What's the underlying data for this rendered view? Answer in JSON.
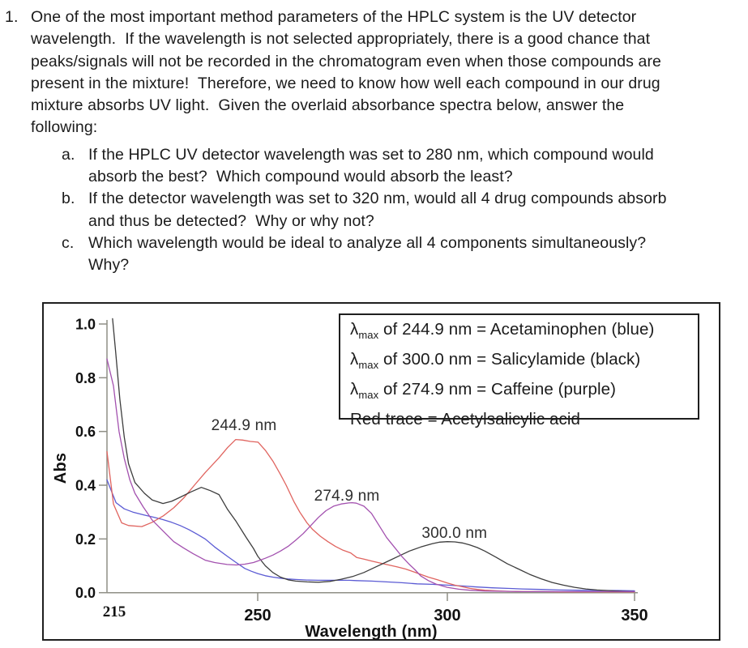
{
  "question": {
    "number": "1.",
    "lines": [
      "One of the most important method parameters of the HPLC system is the UV detector",
      "wavelength.  If the wavelength is not selected appropriately, there is a good chance that",
      "peaks/signals will not be recorded in the chromatogram even when those compounds are",
      "present in the mixture!  Therefore, we need to know how well each compound in our drug",
      "mixture absorbs UV light.  Given the overlaid absorbance spectra below, answer the",
      "following:"
    ],
    "sub_items": [
      {
        "label": "a.",
        "lines": [
          "If the HPLC UV detector wavelength was set to 280 nm, which compound would",
          "absorb the best?  Which compound would absorb the least?"
        ]
      },
      {
        "label": "b.",
        "lines": [
          "If the detector wavelength was set to 320 nm, would all 4 drug compounds absorb",
          "and thus be detected?  Why or why not?"
        ]
      },
      {
        "label": "c.",
        "lines": [
          "Which wavelength would be ideal to analyze all 4 components simultaneously?",
          "Why?"
        ]
      }
    ]
  },
  "chart_data": {
    "type": "line",
    "xlabel": "Wavelength (nm)",
    "ylabel": "Abs",
    "xlim": [
      215,
      350
    ],
    "ylim": [
      0.0,
      1.0
    ],
    "grid": false,
    "x_ticks": [
      {
        "label": "215",
        "value": 215,
        "serif": true,
        "show_tick": false,
        "dx": 9
      },
      {
        "label": "250",
        "value": 250
      },
      {
        "label": "300",
        "value": 300
      },
      {
        "label": "350",
        "value": 350
      }
    ],
    "y_ticks": [
      {
        "label": "0.0",
        "value": 0.0
      },
      {
        "label": "0.2",
        "value": 0.2
      },
      {
        "label": "0.4",
        "value": 0.4
      },
      {
        "label": "0.6",
        "value": 0.6
      },
      {
        "label": "0.8",
        "value": 0.8
      },
      {
        "label": "1.0",
        "value": 1.0
      }
    ],
    "annotations": [
      {
        "text": "244.9 nm",
        "nm": 246.8,
        "abs": 0.605
      },
      {
        "text": "274.9 nm",
        "nm": 273.5,
        "abs": 0.343
      },
      {
        "text": "300.0 nm",
        "nm": 301.9,
        "abs": 0.204
      }
    ],
    "legend": {
      "lines": [
        {
          "lambda": "λ",
          "sub": "max",
          "text": " of 244.9 nm = Acetaminophen (blue)"
        },
        {
          "lambda": "λ",
          "sub": "max",
          "text": " of 300.0 nm = Salicylamide (black)"
        },
        {
          "lambda": "λ",
          "sub": "max",
          "text": " of 274.9 nm = Caffeine (purple)"
        },
        {
          "text": "Red trace = Acetylsalicylic acid"
        }
      ]
    },
    "series": [
      {
        "name": "Acetaminophen",
        "color_name": "blue",
        "color": "#5b5bd4",
        "lambda_max_nm": 244.9,
        "points": [
          [
            215,
            0.42
          ],
          [
            217.1,
            0.335
          ],
          [
            219,
            0.312
          ],
          [
            221,
            0.3
          ],
          [
            223.4,
            0.29
          ],
          [
            226,
            0.28
          ],
          [
            228,
            0.272
          ],
          [
            230,
            0.262
          ],
          [
            232,
            0.25
          ],
          [
            234,
            0.235
          ],
          [
            236,
            0.217
          ],
          [
            237.8,
            0.2
          ],
          [
            240,
            0.17
          ],
          [
            242.9,
            0.136
          ],
          [
            245,
            0.112
          ],
          [
            247,
            0.09
          ],
          [
            248.5,
            0.08
          ],
          [
            250,
            0.071
          ],
          [
            252,
            0.063
          ],
          [
            254,
            0.058
          ],
          [
            256,
            0.054
          ],
          [
            258,
            0.051
          ],
          [
            260,
            0.049
          ],
          [
            263,
            0.047
          ],
          [
            266,
            0.046
          ],
          [
            270,
            0.046
          ],
          [
            274,
            0.046
          ],
          [
            276,
            0.045
          ],
          [
            280,
            0.043
          ],
          [
            284,
            0.04
          ],
          [
            288,
            0.037
          ],
          [
            292,
            0.033
          ],
          [
            296,
            0.031
          ],
          [
            300,
            0.028
          ],
          [
            304,
            0.025
          ],
          [
            308,
            0.021
          ],
          [
            312,
            0.018
          ],
          [
            316,
            0.016
          ],
          [
            320,
            0.014
          ],
          [
            325,
            0.012
          ],
          [
            330,
            0.01
          ],
          [
            335,
            0.009
          ],
          [
            340,
            0.008
          ],
          [
            345,
            0.008
          ],
          [
            350,
            0.007
          ]
        ]
      },
      {
        "name": "Acetylsalicylic acid",
        "color_name": "red",
        "color": "#e0645f",
        "lambda_max_nm": 244.9,
        "points": [
          [
            215,
            0.525
          ],
          [
            216.5,
            0.33
          ],
          [
            218.4,
            0.26
          ],
          [
            220,
            0.25
          ],
          [
            223.1,
            0.246
          ],
          [
            225.5,
            0.262
          ],
          [
            228.1,
            0.286
          ],
          [
            230.5,
            0.316
          ],
          [
            232.8,
            0.352
          ],
          [
            235.3,
            0.4
          ],
          [
            237.8,
            0.447
          ],
          [
            241,
            0.502
          ],
          [
            243,
            0.54
          ],
          [
            244.9,
            0.57
          ],
          [
            246.5,
            0.568
          ],
          [
            248.3,
            0.563
          ],
          [
            250.1,
            0.56
          ],
          [
            252,
            0.53
          ],
          [
            254,
            0.49
          ],
          [
            256,
            0.44
          ],
          [
            257.5,
            0.4
          ],
          [
            259.5,
            0.34
          ],
          [
            261.1,
            0.3
          ],
          [
            263,
            0.26
          ],
          [
            264.5,
            0.235
          ],
          [
            266.5,
            0.21
          ],
          [
            268.5,
            0.19
          ],
          [
            270.5,
            0.172
          ],
          [
            272.5,
            0.158
          ],
          [
            274.5,
            0.148
          ],
          [
            276.1,
            0.131
          ],
          [
            278,
            0.125
          ],
          [
            280,
            0.118
          ],
          [
            283,
            0.108
          ],
          [
            286.8,
            0.096
          ],
          [
            289,
            0.088
          ],
          [
            291,
            0.078
          ],
          [
            293,
            0.068
          ],
          [
            295,
            0.058
          ],
          [
            297.4,
            0.048
          ],
          [
            300,
            0.036
          ],
          [
            302,
            0.028
          ],
          [
            304,
            0.022
          ],
          [
            306,
            0.016
          ],
          [
            308,
            0.012
          ],
          [
            310,
            0.009
          ],
          [
            313,
            0.007
          ],
          [
            316,
            0.005
          ],
          [
            320,
            0.004
          ],
          [
            325,
            0.004
          ],
          [
            330,
            0.003
          ],
          [
            340,
            0.003
          ],
          [
            350,
            0.003
          ]
        ]
      },
      {
        "name": "Salicylamide",
        "color_name": "black",
        "color": "#3d3d3d",
        "lambda_max_nm": 300.0,
        "points": [
          [
            216.3,
            1.02
          ],
          [
            217,
            0.9
          ],
          [
            218,
            0.72
          ],
          [
            219,
            0.58
          ],
          [
            220,
            0.48
          ],
          [
            221.5,
            0.41
          ],
          [
            223.7,
            0.37
          ],
          [
            225.5,
            0.345
          ],
          [
            228,
            0.332
          ],
          [
            230,
            0.34
          ],
          [
            232,
            0.355
          ],
          [
            234.5,
            0.375
          ],
          [
            236.9,
            0.392
          ],
          [
            239,
            0.38
          ],
          [
            241,
            0.365
          ],
          [
            243,
            0.31
          ],
          [
            245,
            0.265
          ],
          [
            247.3,
            0.206
          ],
          [
            249,
            0.165
          ],
          [
            250,
            0.136
          ],
          [
            252,
            0.1
          ],
          [
            254,
            0.075
          ],
          [
            256,
            0.058
          ],
          [
            258,
            0.048
          ],
          [
            260,
            0.043
          ],
          [
            263,
            0.04
          ],
          [
            266,
            0.039
          ],
          [
            269,
            0.042
          ],
          [
            272,
            0.05
          ],
          [
            275,
            0.06
          ],
          [
            278,
            0.075
          ],
          [
            281,
            0.095
          ],
          [
            284,
            0.115
          ],
          [
            287,
            0.135
          ],
          [
            290,
            0.155
          ],
          [
            293,
            0.17
          ],
          [
            296,
            0.182
          ],
          [
            298,
            0.188
          ],
          [
            300,
            0.19
          ],
          [
            302,
            0.189
          ],
          [
            304,
            0.185
          ],
          [
            306,
            0.178
          ],
          [
            308,
            0.168
          ],
          [
            310,
            0.155
          ],
          [
            313,
            0.132
          ],
          [
            316,
            0.108
          ],
          [
            319,
            0.088
          ],
          [
            322,
            0.068
          ],
          [
            325,
            0.052
          ],
          [
            328,
            0.038
          ],
          [
            331,
            0.028
          ],
          [
            334,
            0.02
          ],
          [
            337,
            0.014
          ],
          [
            340,
            0.01
          ],
          [
            344,
            0.007
          ],
          [
            347,
            0.005
          ],
          [
            350,
            0.004
          ]
        ]
      },
      {
        "name": "Caffeine",
        "color_name": "purple",
        "color": "#a351af",
        "lambda_max_nm": 274.9,
        "points": [
          [
            215,
            0.87
          ],
          [
            216.5,
            0.77
          ],
          [
            217.8,
            0.6
          ],
          [
            219,
            0.5
          ],
          [
            220.3,
            0.42
          ],
          [
            221.5,
            0.37
          ],
          [
            223.4,
            0.32
          ],
          [
            225.5,
            0.27
          ],
          [
            228,
            0.23
          ],
          [
            230.5,
            0.19
          ],
          [
            232.8,
            0.166
          ],
          [
            235,
            0.145
          ],
          [
            237.8,
            0.121
          ],
          [
            240,
            0.112
          ],
          [
            242.9,
            0.105
          ],
          [
            245,
            0.103
          ],
          [
            247,
            0.106
          ],
          [
            249,
            0.112
          ],
          [
            250,
            0.118
          ],
          [
            252,
            0.128
          ],
          [
            254,
            0.14
          ],
          [
            256,
            0.155
          ],
          [
            258,
            0.172
          ],
          [
            260,
            0.195
          ],
          [
            262,
            0.22
          ],
          [
            264,
            0.25
          ],
          [
            266,
            0.28
          ],
          [
            268,
            0.305
          ],
          [
            270,
            0.322
          ],
          [
            272,
            0.33
          ],
          [
            274,
            0.334
          ],
          [
            274.9,
            0.335
          ],
          [
            276,
            0.333
          ],
          [
            278,
            0.322
          ],
          [
            280,
            0.295
          ],
          [
            282,
            0.25
          ],
          [
            284,
            0.205
          ],
          [
            286,
            0.17
          ],
          [
            288,
            0.135
          ],
          [
            290,
            0.105
          ],
          [
            291.5,
            0.085
          ],
          [
            293,
            0.062
          ],
          [
            295,
            0.045
          ],
          [
            297,
            0.032
          ],
          [
            300,
            0.02
          ],
          [
            303,
            0.013
          ],
          [
            306,
            0.009
          ],
          [
            310,
            0.006
          ],
          [
            315,
            0.005
          ],
          [
            320,
            0.004
          ],
          [
            330,
            0.004
          ],
          [
            340,
            0.004
          ],
          [
            350,
            0.004
          ]
        ]
      }
    ]
  }
}
